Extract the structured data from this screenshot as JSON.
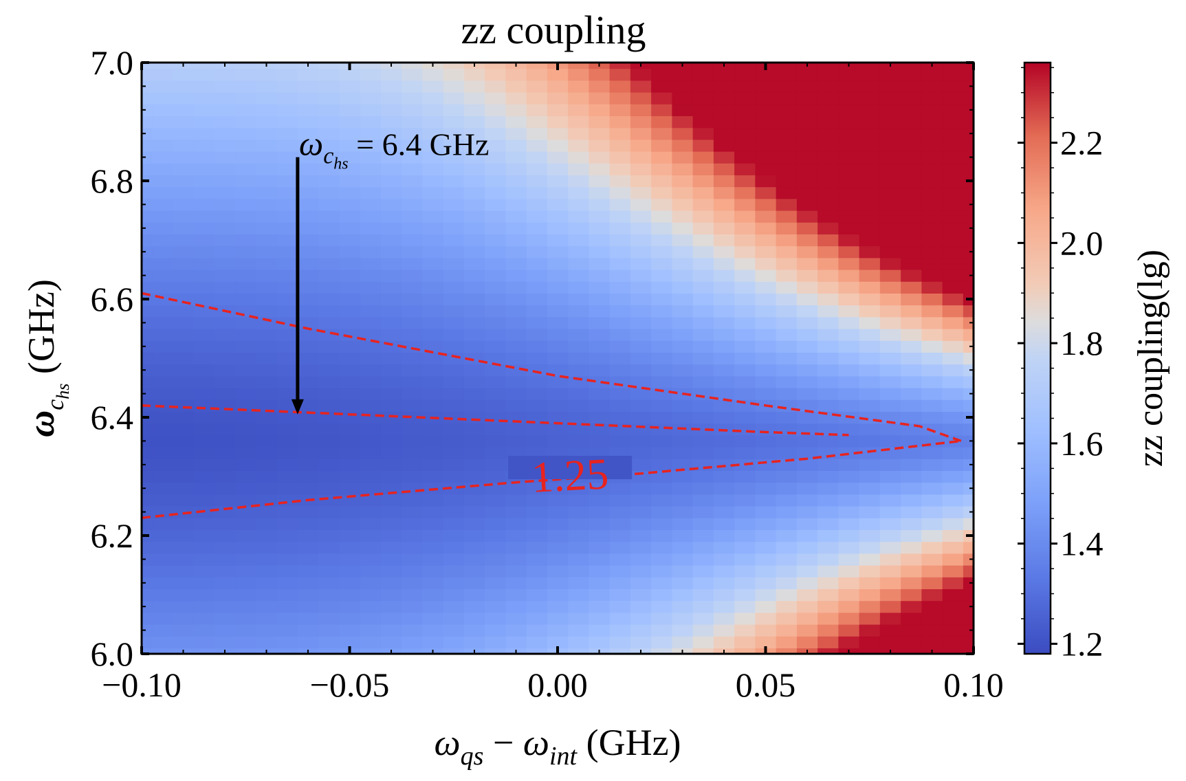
{
  "chart_data": {
    "type": "heatmap",
    "title": "zz coupling",
    "xlabel": {
      "var": "ω",
      "sub": "qs",
      "op": " − ",
      "var2": "ω",
      "sub2": "int",
      "unit": " (GHz)"
    },
    "ylabel": {
      "var": "ω",
      "sub": "c",
      "subsub": "hs",
      "unit": " (GHz)"
    },
    "xlim": [
      -0.1,
      0.1
    ],
    "ylim": [
      6.0,
      7.0
    ],
    "x_ticks": [
      {
        "value": -0.1,
        "label": "−0.10"
      },
      {
        "value": -0.05,
        "label": "−0.05"
      },
      {
        "value": 0.0,
        "label": "0.00"
      },
      {
        "value": 0.05,
        "label": "0.05"
      },
      {
        "value": 0.1,
        "label": "0.10"
      }
    ],
    "y_ticks": [
      {
        "value": 6.0,
        "label": "6.0"
      },
      {
        "value": 6.2,
        "label": "6.2"
      },
      {
        "value": 6.4,
        "label": "6.4"
      },
      {
        "value": 6.6,
        "label": "6.6"
      },
      {
        "value": 6.8,
        "label": "6.8"
      },
      {
        "value": 7.0,
        "label": "7.0"
      }
    ],
    "grid": false,
    "colormap": "coolwarm",
    "colorbar": {
      "label": "zz coupling(lg)",
      "range": [
        1.18,
        2.36
      ],
      "ticks": [
        {
          "value": 1.2,
          "label": "1.2"
        },
        {
          "value": 1.4,
          "label": "1.4"
        },
        {
          "value": 1.6,
          "label": "1.6"
        },
        {
          "value": 1.8,
          "label": "1.8"
        },
        {
          "value": 2.0,
          "label": "2.0"
        },
        {
          "value": 2.2,
          "label": "2.2"
        }
      ]
    },
    "grid_size": {
      "nx": 41,
      "ny": 51
    },
    "model": {
      "description": "estimated field shape: minimum along a valley near 6.36 GHz, increasing toward +0.10 and toward y edges",
      "valley_center": 6.36,
      "min_value": 1.2,
      "max_value": 2.35
    },
    "contour": {
      "level": 1.25,
      "label": "1.25",
      "color": "#e8231f",
      "upper_branch": [
        [
          -0.1,
          6.61
        ],
        [
          -0.06,
          6.55
        ],
        [
          0.0,
          6.47
        ],
        [
          0.05,
          6.42
        ],
        [
          0.087,
          6.385
        ],
        [
          0.097,
          6.36
        ]
      ],
      "lower_branch": [
        [
          -0.1,
          6.23
        ],
        [
          -0.06,
          6.26
        ],
        [
          -0.01,
          6.29
        ],
        [
          0.02,
          6.305
        ],
        [
          0.06,
          6.33
        ],
        [
          0.097,
          6.36
        ]
      ],
      "inner_branch": [
        [
          -0.1,
          6.42
        ],
        [
          -0.05,
          6.405
        ],
        [
          0.0,
          6.39
        ],
        [
          0.05,
          6.375
        ],
        [
          0.07,
          6.37
        ]
      ],
      "label_at": [
        0.003,
        6.3
      ]
    },
    "annotation": {
      "text_var": "ω",
      "text_sub": "c",
      "text_subsub": "hs",
      "text_rest": " = 6.4 GHz",
      "arrow_from": [
        -0.0625,
        6.84
      ],
      "arrow_to": [
        -0.0625,
        6.405
      ],
      "text_at": [
        -0.0625,
        6.86
      ]
    }
  }
}
